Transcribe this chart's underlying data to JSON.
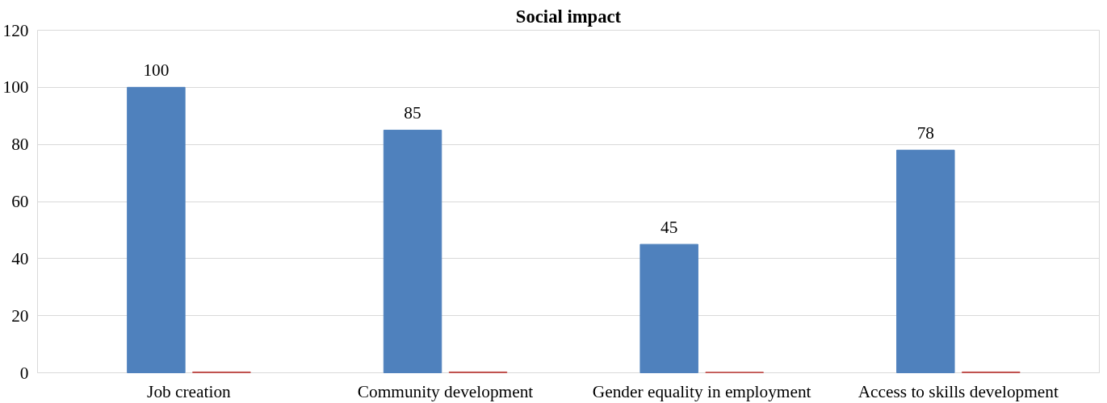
{
  "chart_data": {
    "type": "bar",
    "title": "Social impact",
    "categories": [
      "Job creation",
      "Community development",
      "Gender equality in employment",
      "Access to skills development"
    ],
    "series": [
      {
        "color": "#4f81bd",
        "values": [
          100,
          85,
          45,
          78
        ],
        "value_labels": [
          "100",
          "85",
          "45",
          "78"
        ]
      },
      {
        "color": "#c0504d",
        "values": [
          0.3,
          0.3,
          0.2,
          0.3
        ]
      }
    ],
    "ylim": [
      0,
      120
    ],
    "yticks": [
      0,
      20,
      40,
      60,
      80,
      100,
      120
    ],
    "grid": "y"
  }
}
